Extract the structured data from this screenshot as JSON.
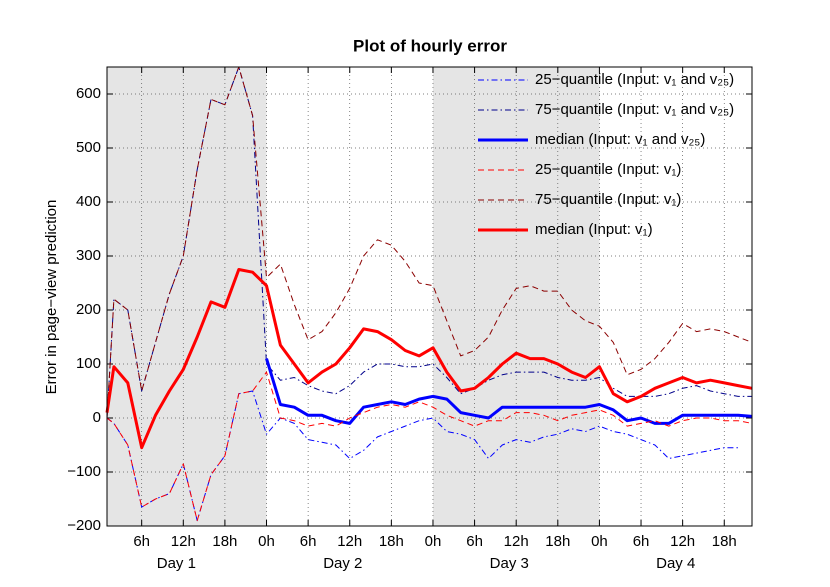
{
  "chart_data": {
    "type": "line",
    "title": "Plot of hourly error",
    "ylabel": "Error in page−view prediction",
    "xlim": [
      1,
      94
    ],
    "ylim": [
      -200,
      650
    ],
    "xticks": [
      {
        "value": 6,
        "label": "6h"
      },
      {
        "value": 12,
        "label": "12h"
      },
      {
        "value": 18,
        "label": "18h"
      },
      {
        "value": 24,
        "label": "0h"
      },
      {
        "value": 30,
        "label": "6h"
      },
      {
        "value": 36,
        "label": "12h"
      },
      {
        "value": 42,
        "label": "18h"
      },
      {
        "value": 48,
        "label": "0h"
      },
      {
        "value": 54,
        "label": "6h"
      },
      {
        "value": 60,
        "label": "12h"
      },
      {
        "value": 66,
        "label": "18h"
      },
      {
        "value": 72,
        "label": "0h"
      },
      {
        "value": 78,
        "label": "6h"
      },
      {
        "value": 84,
        "label": "12h"
      },
      {
        "value": 90,
        "label": "18h"
      }
    ],
    "yticks": [
      {
        "value": -200,
        "label": "−200"
      },
      {
        "value": -100,
        "label": "−100"
      },
      0,
      100,
      200,
      300,
      400,
      500,
      600
    ],
    "day_labels": [
      {
        "x": 11,
        "label": "Day 1"
      },
      {
        "x": 35,
        "label": "Day 2"
      },
      {
        "x": 59,
        "label": "Day 3"
      },
      {
        "x": 83,
        "label": "Day 4"
      }
    ],
    "shaded_spans": [
      [
        0,
        24
      ],
      [
        48,
        72
      ]
    ],
    "grid": true,
    "legend": "upper right",
    "x": [
      1,
      2,
      4,
      6,
      8,
      10,
      12,
      14,
      16,
      18,
      20,
      22,
      24,
      26,
      28,
      30,
      32,
      34,
      36,
      38,
      40,
      42,
      44,
      46,
      48,
      50,
      52,
      54,
      56,
      58,
      60,
      62,
      64,
      66,
      68,
      70,
      72,
      74,
      76,
      78,
      80,
      82,
      84,
      86,
      88,
      90,
      92,
      94
    ],
    "series": [
      {
        "name": "25−quantile (Input: v₁ and v₂₅)",
        "color": "#0000ff",
        "dash": "dashdot",
        "width": 1,
        "values": [
          0,
          -10,
          -50,
          -165,
          -150,
          -140,
          -85,
          -190,
          -105,
          -70,
          45,
          50,
          -30,
          0,
          -10,
          -40,
          -45,
          -50,
          -75,
          -60,
          -35,
          -25,
          -15,
          -5,
          0,
          -25,
          -30,
          -40,
          -75,
          -50,
          -40,
          -45,
          -35,
          -30,
          -20,
          -25,
          -15,
          -25,
          -30,
          -40,
          -50,
          -75,
          -70,
          -65,
          -60,
          -55,
          -55,
          null
        ]
      },
      {
        "name": "75−quantile (Input: v₁ and v₂₅)",
        "color": "#00008b",
        "dash": "dashdot",
        "width": 1,
        "values": [
          0,
          220,
          200,
          50,
          140,
          230,
          300,
          460,
          590,
          580,
          650,
          560,
          100,
          70,
          75,
          60,
          50,
          45,
          60,
          85,
          100,
          100,
          95,
          95,
          100,
          75,
          45,
          55,
          70,
          80,
          85,
          85,
          85,
          75,
          70,
          70,
          75,
          55,
          40,
          40,
          40,
          45,
          55,
          60,
          50,
          45,
          40,
          40
        ]
      },
      {
        "name": "median (Input: v₁ and v₂₅)",
        "color": "#0000ff",
        "dash": "solid",
        "width": 3,
        "values": [
          null,
          null,
          null,
          null,
          null,
          null,
          null,
          null,
          null,
          null,
          null,
          null,
          110,
          25,
          20,
          5,
          5,
          -5,
          -10,
          20,
          25,
          30,
          25,
          35,
          40,
          35,
          10,
          5,
          0,
          20,
          20,
          20,
          20,
          20,
          20,
          20,
          25,
          15,
          -5,
          0,
          -10,
          -10,
          5,
          5,
          5,
          5,
          5,
          3
        ]
      },
      {
        "name": "25−quantile (Input: v₁)",
        "color": "#ff0000",
        "dash": "dashed",
        "width": 1,
        "values": [
          0,
          -10,
          -50,
          -165,
          -150,
          -140,
          -85,
          -190,
          -105,
          -70,
          45,
          50,
          85,
          0,
          -5,
          -15,
          -10,
          -15,
          0,
          10,
          20,
          25,
          20,
          30,
          20,
          5,
          -5,
          -15,
          -5,
          -5,
          10,
          10,
          5,
          -5,
          5,
          10,
          15,
          5,
          -15,
          -10,
          -5,
          -15,
          -5,
          0,
          0,
          -5,
          -5,
          -10
        ]
      },
      {
        "name": "75−quantile (Input: v₁)",
        "color": "#8b0000",
        "dash": "dashed",
        "width": 1,
        "values": [
          0,
          220,
          200,
          50,
          140,
          230,
          300,
          460,
          590,
          580,
          650,
          560,
          260,
          285,
          210,
          145,
          160,
          195,
          240,
          300,
          330,
          320,
          290,
          250,
          245,
          180,
          115,
          125,
          150,
          200,
          240,
          245,
          235,
          235,
          200,
          180,
          170,
          140,
          80,
          90,
          110,
          140,
          175,
          160,
          165,
          160,
          150,
          140
        ]
      },
      {
        "name": "median (Input: v₁)",
        "color": "#ff0000",
        "dash": "solid",
        "width": 3,
        "values": [
          10,
          95,
          65,
          -55,
          5,
          50,
          90,
          150,
          215,
          205,
          275,
          270,
          245,
          135,
          100,
          65,
          85,
          100,
          130,
          165,
          160,
          145,
          125,
          115,
          130,
          85,
          50,
          55,
          75,
          100,
          120,
          110,
          110,
          100,
          85,
          75,
          95,
          45,
          30,
          40,
          55,
          65,
          75,
          65,
          70,
          65,
          60,
          55
        ]
      }
    ]
  }
}
